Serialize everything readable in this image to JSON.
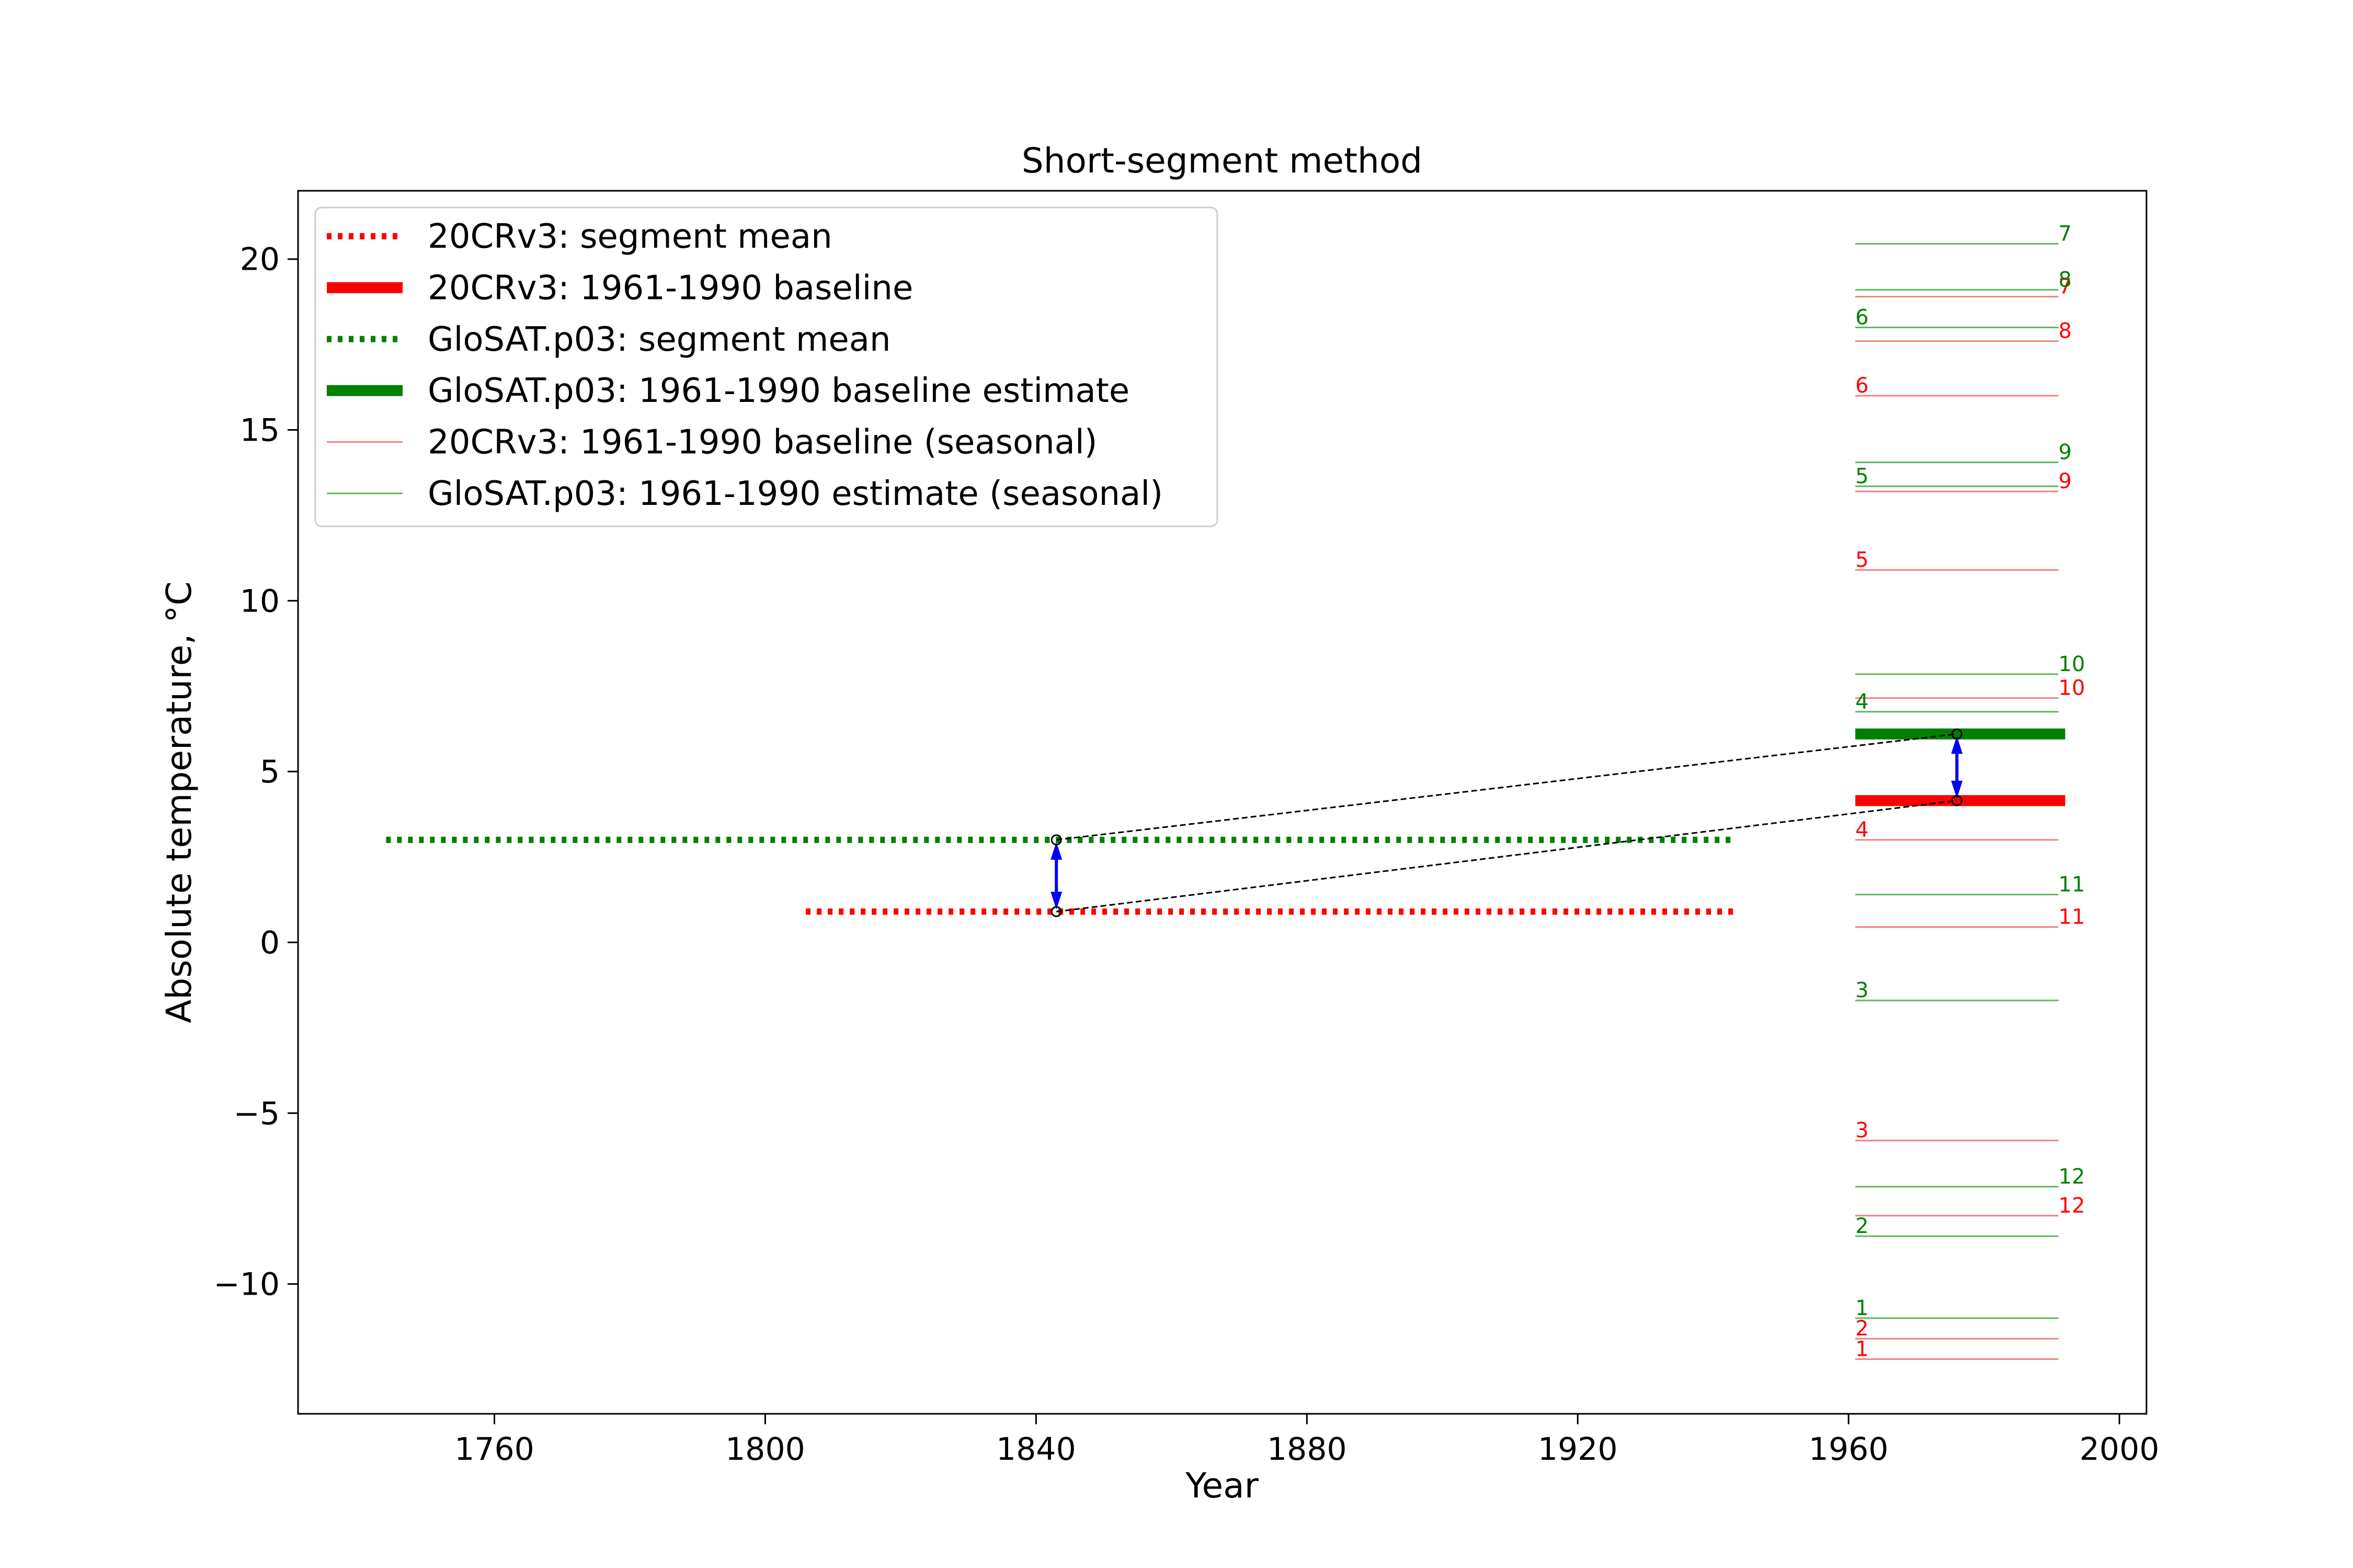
{
  "chart_data": {
    "type": "line",
    "title": "Short-segment method",
    "xlabel": "Year",
    "ylabel": "Absolute temperature, °C",
    "xlim": [
      1731,
      2004
    ],
    "ylim": [
      -13.8,
      22
    ],
    "xticks": [
      1760,
      1800,
      1840,
      1880,
      1920,
      1960,
      2000
    ],
    "yticks": [
      -10,
      -5,
      0,
      5,
      10,
      15,
      20
    ],
    "xtick_labels": [
      "1760",
      "1800",
      "1840",
      "1880",
      "1920",
      "1960",
      "2000"
    ],
    "ytick_labels": [
      "−10",
      "−5",
      "0",
      "5",
      "10",
      "15",
      "20"
    ],
    "grid": false,
    "legend_position": "top-left",
    "colors": {
      "reanalysis": "#ff0000",
      "observations": "#008000",
      "arrow": "#0000ff",
      "connector": "#000000",
      "seasonal_reanalysis": "#f08080",
      "seasonal_observations": "#5fb85f"
    },
    "legend": [
      {
        "label": "20CRv3: segment mean",
        "color": "#ff0000",
        "style": "dotted",
        "weight": "thick"
      },
      {
        "label": "20CRv3: 1961-1990 baseline",
        "color": "#ff0000",
        "style": "solid",
        "weight": "thick"
      },
      {
        "label": "GloSAT.p03: segment mean",
        "color": "#008000",
        "style": "dotted",
        "weight": "thick"
      },
      {
        "label": "GloSAT.p03: 1961-1990 baseline estimate",
        "color": "#008000",
        "style": "solid",
        "weight": "thick"
      },
      {
        "label": "20CRv3: 1961-1990 baseline (seasonal)",
        "color": "#f08080",
        "style": "solid",
        "weight": "thin"
      },
      {
        "label": "GloSAT.p03: 1961-1990 estimate (seasonal)",
        "color": "#5fb85f",
        "style": "solid",
        "weight": "thin"
      }
    ],
    "series": [
      {
        "name": "20CRv3: segment mean",
        "x": [
          1806,
          1943
        ],
        "y": [
          0.9,
          0.9
        ]
      },
      {
        "name": "GloSAT.p03: segment mean",
        "x": [
          1744,
          1943
        ],
        "y": [
          3.0,
          3.0
        ]
      },
      {
        "name": "20CRv3: 1961-1990 baseline",
        "x": [
          1961,
          1992
        ],
        "y": [
          4.15,
          4.15
        ]
      },
      {
        "name": "GloSAT.p03: 1961-1990 baseline estimate",
        "x": [
          1961,
          1992
        ],
        "y": [
          6.1,
          6.1
        ]
      }
    ],
    "seasonal": {
      "x_range": [
        1961,
        1991
      ],
      "reanalysis": [
        {
          "month": "1",
          "value": -12.2
        },
        {
          "month": "2",
          "value": -11.6
        },
        {
          "month": "3",
          "value": -5.8
        },
        {
          "month": "4",
          "value": 3.0
        },
        {
          "month": "5",
          "value": 10.9
        },
        {
          "month": "6",
          "value": 16.0
        },
        {
          "month": "7",
          "value": 18.9
        },
        {
          "month": "8",
          "value": 17.6
        },
        {
          "month": "9",
          "value": 13.2
        },
        {
          "month": "10",
          "value": 7.15
        },
        {
          "month": "11",
          "value": 0.45
        },
        {
          "month": "12",
          "value": -8.0
        }
      ],
      "observations": [
        {
          "month": "1",
          "value": -11.0
        },
        {
          "month": "2",
          "value": -8.6
        },
        {
          "month": "3",
          "value": -1.7
        },
        {
          "month": "4",
          "value": 6.75
        },
        {
          "month": "5",
          "value": 13.35
        },
        {
          "month": "6",
          "value": 18.0
        },
        {
          "month": "7",
          "value": 20.45
        },
        {
          "month": "8",
          "value": 19.1
        },
        {
          "month": "9",
          "value": 14.05
        },
        {
          "month": "10",
          "value": 7.85
        },
        {
          "month": "11",
          "value": 1.4
        },
        {
          "month": "12",
          "value": -7.15
        }
      ]
    },
    "annotations": {
      "offset_arrows": [
        {
          "x": 1843,
          "y_from": 0.9,
          "y_to": 3.0
        },
        {
          "x": 1976,
          "y_from": 4.15,
          "y_to": 6.1
        }
      ],
      "connectors": [
        {
          "from": [
            1843,
            3.0
          ],
          "to": [
            1976,
            6.1
          ]
        },
        {
          "from": [
            1843,
            0.9
          ],
          "to": [
            1976,
            4.15
          ]
        }
      ]
    }
  }
}
